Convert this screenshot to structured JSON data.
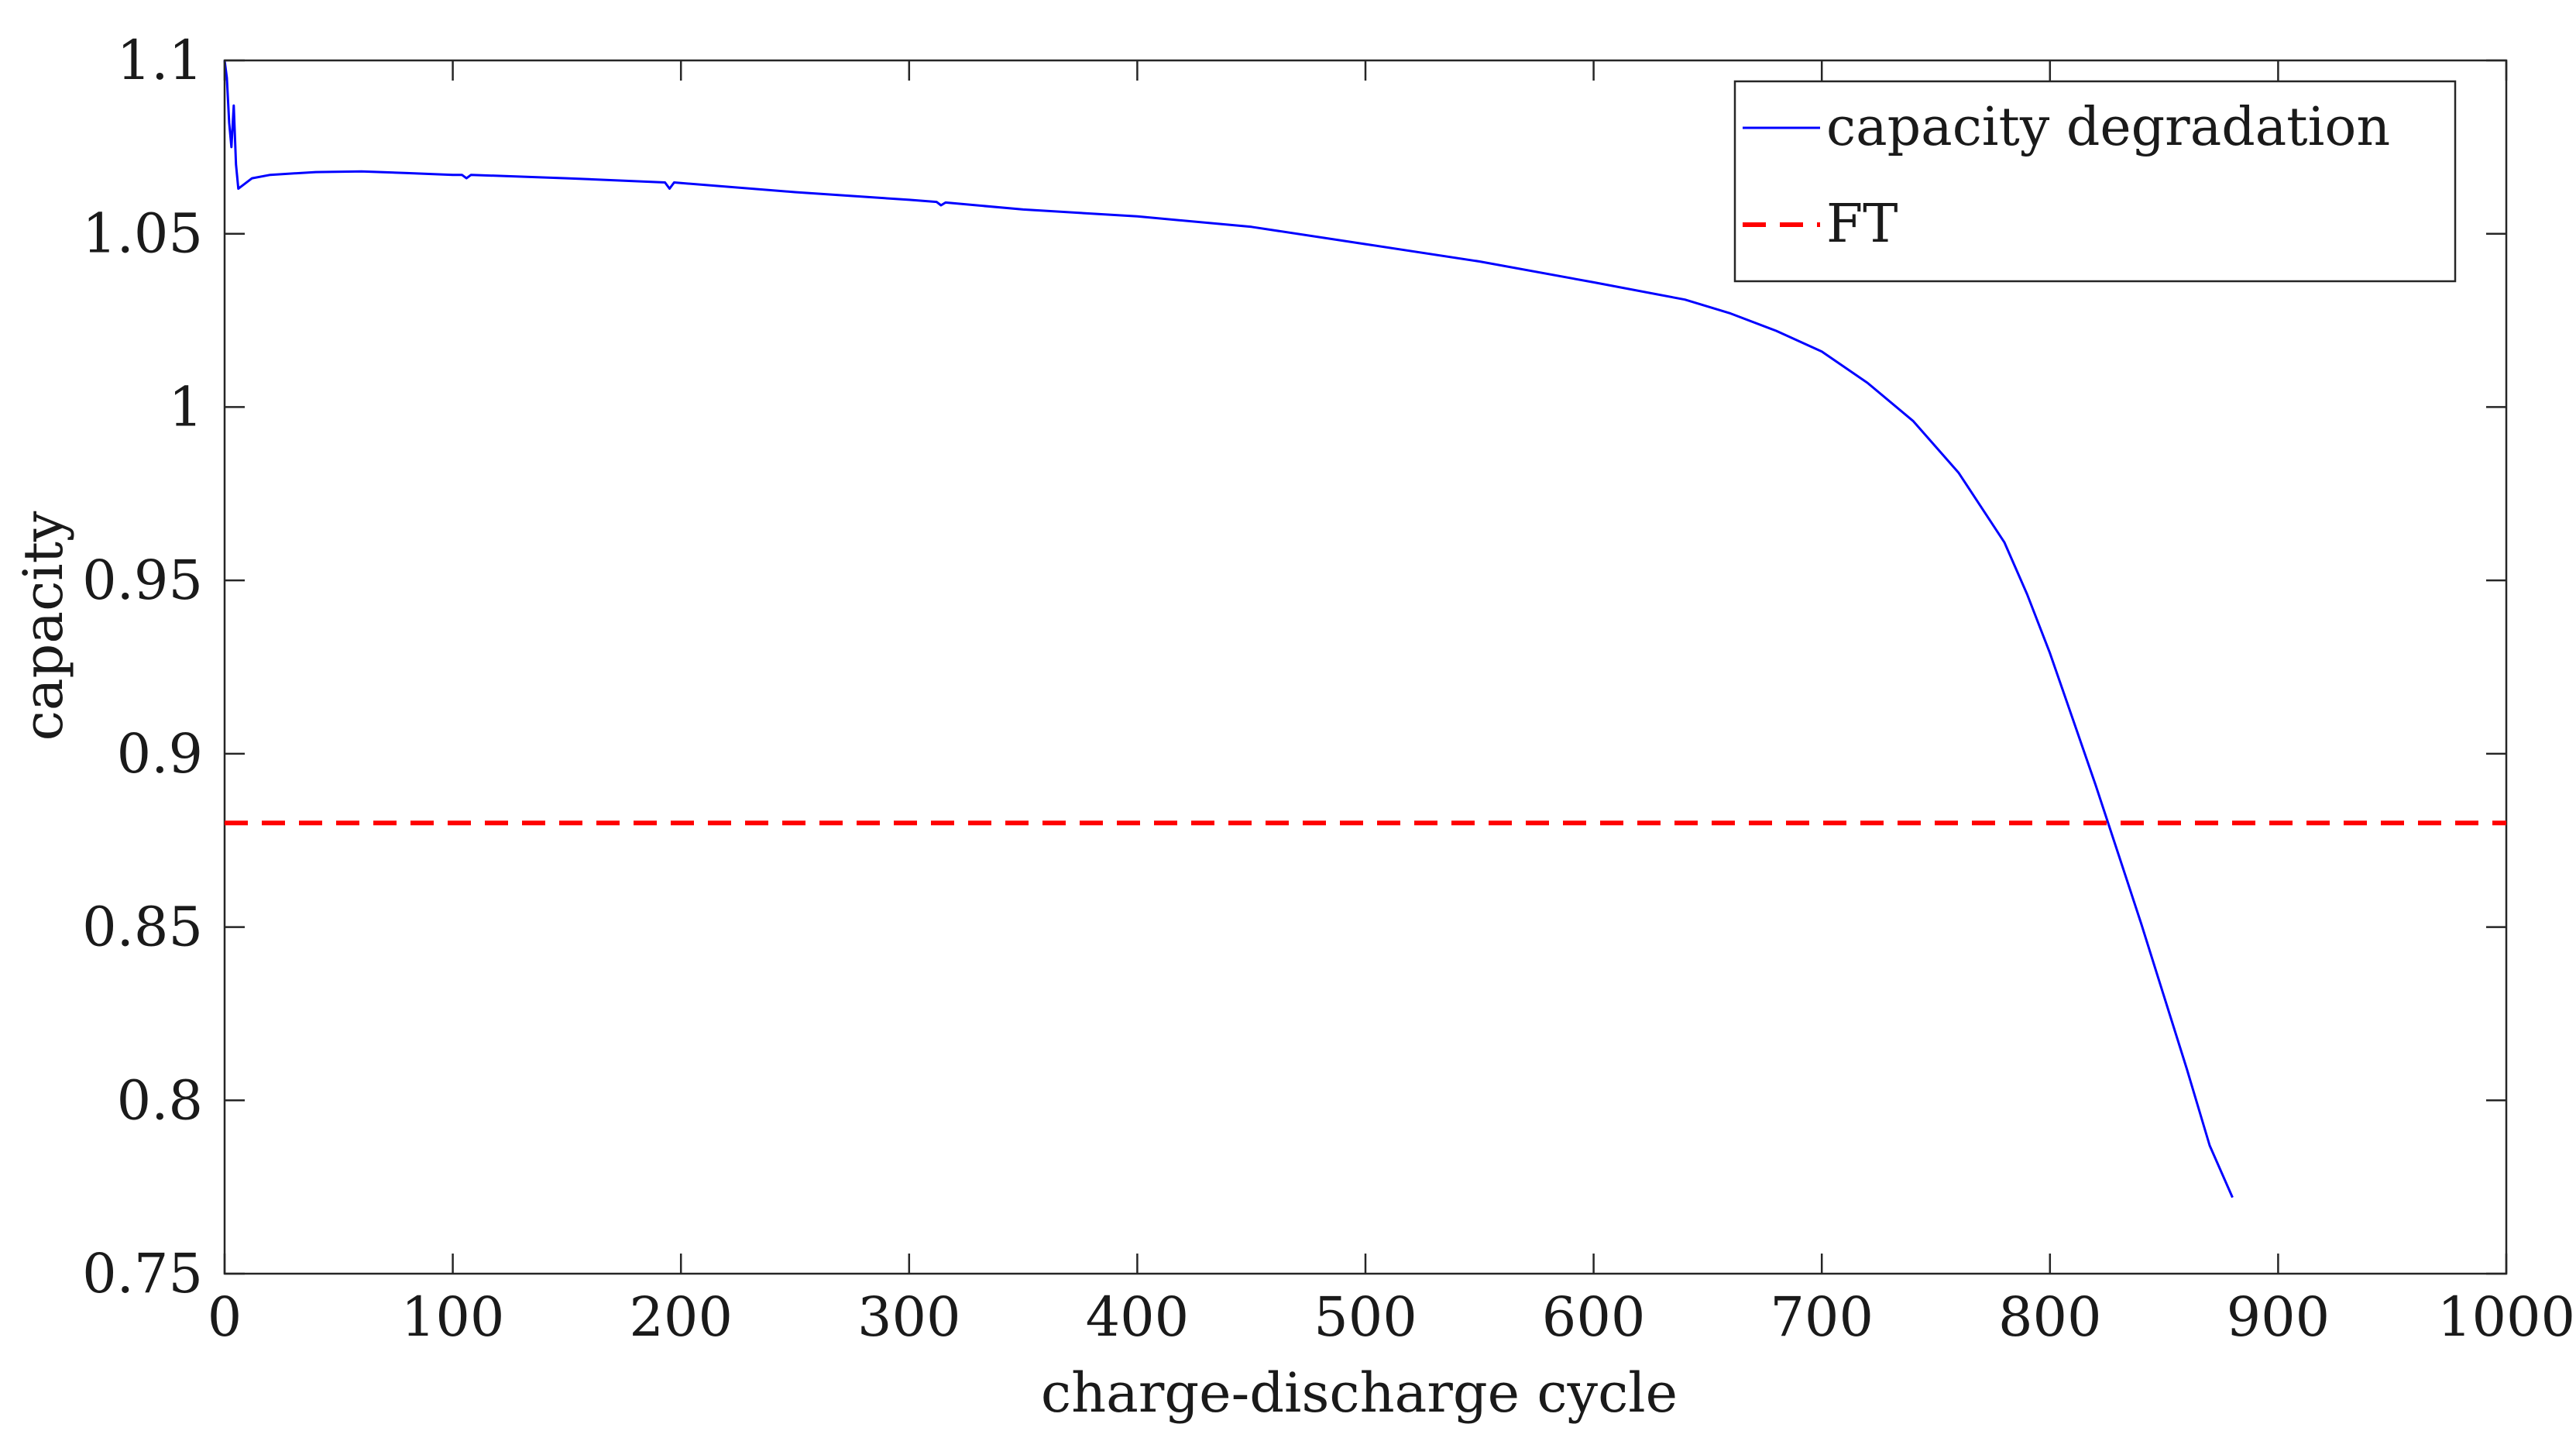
{
  "chart_data": {
    "type": "line",
    "title": "",
    "xlabel": "charge-discharge cycle",
    "ylabel": "capacity",
    "xlim": [
      0,
      1000
    ],
    "ylim": [
      0.75,
      1.1
    ],
    "xticks": [
      0,
      100,
      200,
      300,
      400,
      500,
      600,
      700,
      800,
      900,
      1000
    ],
    "xtick_labels": [
      "0",
      "100",
      "200",
      "300",
      "400",
      "500",
      "600",
      "700",
      "800",
      "900",
      "1000"
    ],
    "yticks": [
      0.75,
      0.8,
      0.85,
      0.9,
      0.95,
      1.0,
      1.05,
      1.1
    ],
    "ytick_labels": [
      "0.75",
      "0.8",
      "0.85",
      "0.9",
      "0.95",
      "1",
      "1.05",
      "1.1"
    ],
    "grid": false,
    "legend": {
      "position": "top-right",
      "entries": [
        "capacity degradation",
        "FT"
      ]
    },
    "series": [
      {
        "name": "capacity degradation",
        "color": "#0000ff",
        "style": "solid",
        "x": [
          0,
          1,
          2,
          3,
          4,
          5,
          6,
          8,
          12,
          20,
          40,
          60,
          80,
          100,
          104,
          106,
          108,
          150,
          193,
          195,
          197,
          250,
          300,
          312,
          314,
          316,
          350,
          400,
          450,
          500,
          550,
          600,
          640,
          660,
          680,
          700,
          720,
          740,
          760,
          780,
          790,
          800,
          810,
          820,
          830,
          840,
          850,
          860,
          870,
          880
        ],
        "y": [
          1.1,
          1.095,
          1.082,
          1.075,
          1.087,
          1.07,
          1.063,
          1.064,
          1.066,
          1.067,
          1.0678,
          1.068,
          1.0675,
          1.067,
          1.067,
          1.066,
          1.067,
          1.066,
          1.0648,
          1.063,
          1.0648,
          1.062,
          1.0598,
          1.0592,
          1.0582,
          1.059,
          1.057,
          1.055,
          1.052,
          1.047,
          1.042,
          1.036,
          1.031,
          1.027,
          1.022,
          1.016,
          1.007,
          0.996,
          0.981,
          0.961,
          0.946,
          0.929,
          0.91,
          0.891,
          0.871,
          0.851,
          0.83,
          0.809,
          0.787,
          0.772
        ]
      },
      {
        "name": "FT",
        "color": "#ff0000",
        "style": "dashed",
        "x": [
          0,
          1000
        ],
        "y": [
          0.88,
          0.88
        ]
      }
    ]
  }
}
